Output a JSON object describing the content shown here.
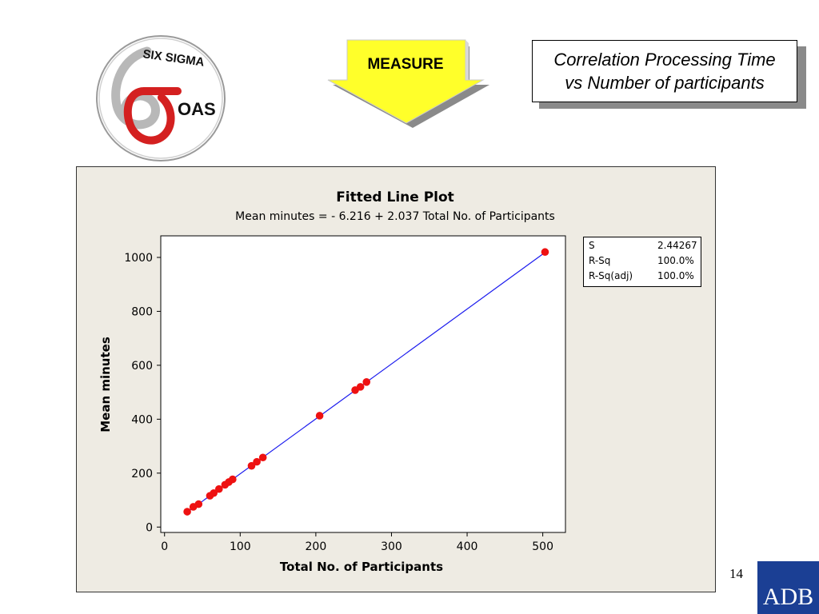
{
  "header": {
    "logo_text_top": "SIX SIGMA",
    "logo_text_side": "OAS",
    "measure_label": "MEASURE",
    "title_line1": "Correlation Processing Time",
    "title_line2": "vs Number of participants"
  },
  "chart_data": {
    "type": "scatter",
    "title": "Fitted Line Plot",
    "subtitle": "Mean minutes =  - 6.216 + 2.037 Total No. of Participants",
    "xlabel": "Total No. of Participants",
    "ylabel": "Mean minutes",
    "xlim": [
      -5,
      530
    ],
    "ylim": [
      -20,
      1080
    ],
    "xticks": [
      0,
      100,
      200,
      300,
      400,
      500
    ],
    "yticks": [
      0,
      200,
      400,
      600,
      800,
      1000
    ],
    "grid": false,
    "series": [
      {
        "kind": "points",
        "color": "#ee1111",
        "x": [
          30,
          38,
          45,
          60,
          65,
          72,
          80,
          85,
          90,
          115,
          122,
          130,
          205,
          252,
          259,
          267,
          503
        ],
        "y": [
          57,
          75,
          85,
          116,
          126,
          141,
          157,
          167,
          177,
          227,
          242,
          258,
          413,
          508,
          520,
          538,
          1020
        ]
      },
      {
        "kind": "fitted-line",
        "color": "#1a1aee",
        "intercept": -6.216,
        "slope": 2.037,
        "x_range": [
          30,
          503
        ]
      }
    ],
    "stats": [
      {
        "name": "S",
        "value": "2.44267"
      },
      {
        "name": "R-Sq",
        "value": "100.0%"
      },
      {
        "name": "R-Sq(adj)",
        "value": "100.0%"
      }
    ]
  },
  "footer": {
    "page_number": "14",
    "adb_label": "ADB"
  }
}
